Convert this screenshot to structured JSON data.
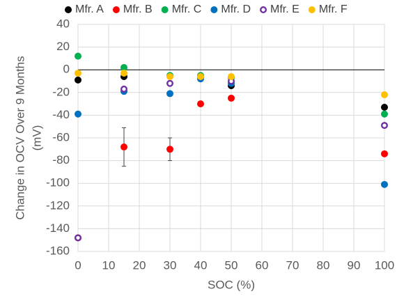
{
  "chart_data": {
    "type": "scatter",
    "x_label": "SOC (%)",
    "y_label": [
      "Change in OCV Over 9 Months",
      "(mV)"
    ],
    "xlim": [
      0,
      100
    ],
    "xticks": [
      0,
      10,
      20,
      30,
      40,
      50,
      60,
      70,
      80,
      90,
      100
    ],
    "ylim": [
      -160,
      40
    ],
    "yticks": [
      -160,
      -140,
      -120,
      -100,
      -80,
      -60,
      -40,
      -20,
      0,
      20,
      40
    ],
    "grid": true,
    "legend": "top",
    "series": [
      {
        "name": "Mfr. A",
        "color": "#000000",
        "filled": true,
        "x": [
          0,
          15,
          50,
          100
        ],
        "values": [
          -9,
          -6,
          -14,
          -33
        ]
      },
      {
        "name": "Mfr. B",
        "color": "#ff0000",
        "filled": true,
        "x": [
          0,
          15,
          30,
          40,
          50,
          100
        ],
        "values": [
          -148,
          -68,
          -70,
          -30,
          -25,
          -74
        ],
        "errors": [
          null,
          17,
          10,
          null,
          null,
          null
        ]
      },
      {
        "name": "Mfr. C",
        "color": "#00b050",
        "filled": true,
        "x": [
          0,
          15,
          30,
          40,
          50,
          100
        ],
        "values": [
          12,
          2,
          -5,
          -5,
          -7,
          -39
        ]
      },
      {
        "name": "Mfr. D",
        "color": "#0070c0",
        "filled": true,
        "x": [
          0,
          15,
          30,
          40,
          50,
          100
        ],
        "values": [
          -39,
          -19,
          -21,
          -8,
          -12,
          -101
        ]
      },
      {
        "name": "Mfr. E",
        "color": "#7030a0",
        "filled": false,
        "x": [
          0,
          15,
          30,
          40,
          50,
          100
        ],
        "values": [
          -148,
          -17,
          -12,
          -6,
          -10,
          -49
        ]
      },
      {
        "name": "Mfr. F",
        "color": "#ffc000",
        "filled": true,
        "x": [
          0,
          15,
          30,
          40,
          50,
          100
        ],
        "values": [
          -3,
          -3,
          -6,
          -6,
          -6,
          -22
        ]
      }
    ]
  }
}
